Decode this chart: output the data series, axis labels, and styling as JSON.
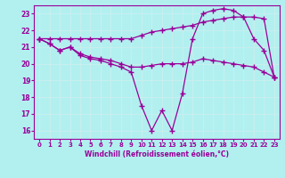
{
  "xlabel": "Windchill (Refroidissement éolien,°C)",
  "bg_color": "#b2f0f0",
  "line_color": "#990099",
  "grid_color": "#cceeee",
  "xlim": [
    -0.5,
    23.5
  ],
  "ylim": [
    15.5,
    23.5
  ],
  "yticks": [
    16,
    17,
    18,
    19,
    20,
    21,
    22,
    23
  ],
  "xticks": [
    0,
    1,
    2,
    3,
    4,
    5,
    6,
    7,
    8,
    9,
    10,
    11,
    12,
    13,
    14,
    15,
    16,
    17,
    18,
    19,
    20,
    21,
    22,
    23
  ],
  "line1_x": [
    0,
    1,
    2,
    3,
    4,
    5,
    6,
    7,
    8,
    9,
    10,
    11,
    12,
    13,
    14,
    15,
    16,
    17,
    18,
    19,
    20,
    21,
    22,
    23
  ],
  "line1_y": [
    21.5,
    21.5,
    21.5,
    21.5,
    21.5,
    21.5,
    21.5,
    21.5,
    21.5,
    21.5,
    21.7,
    21.9,
    22.0,
    22.1,
    22.2,
    22.3,
    22.5,
    22.6,
    22.7,
    22.8,
    22.8,
    22.8,
    22.7,
    19.2
  ],
  "line2_x": [
    0,
    1,
    2,
    3,
    4,
    5,
    6,
    7,
    8,
    9,
    10,
    11,
    12,
    13,
    14,
    15,
    16,
    17,
    18,
    19,
    20,
    21,
    22,
    23
  ],
  "line2_y": [
    21.5,
    21.2,
    20.8,
    21.0,
    20.5,
    20.3,
    20.2,
    20.0,
    19.8,
    19.5,
    17.5,
    16.0,
    17.2,
    16.0,
    18.2,
    21.5,
    23.0,
    23.2,
    23.3,
    23.2,
    22.8,
    21.5,
    20.8,
    19.2
  ],
  "line3_x": [
    0,
    1,
    2,
    3,
    4,
    5,
    6,
    7,
    8,
    9,
    10,
    11,
    12,
    13,
    14,
    15,
    16,
    17,
    18,
    19,
    20,
    21,
    22,
    23
  ],
  "line3_y": [
    21.5,
    21.2,
    20.8,
    21.0,
    20.6,
    20.4,
    20.3,
    20.2,
    20.0,
    19.8,
    19.8,
    19.9,
    20.0,
    20.0,
    20.0,
    20.1,
    20.3,
    20.2,
    20.1,
    20.0,
    19.9,
    19.8,
    19.5,
    19.2
  ]
}
